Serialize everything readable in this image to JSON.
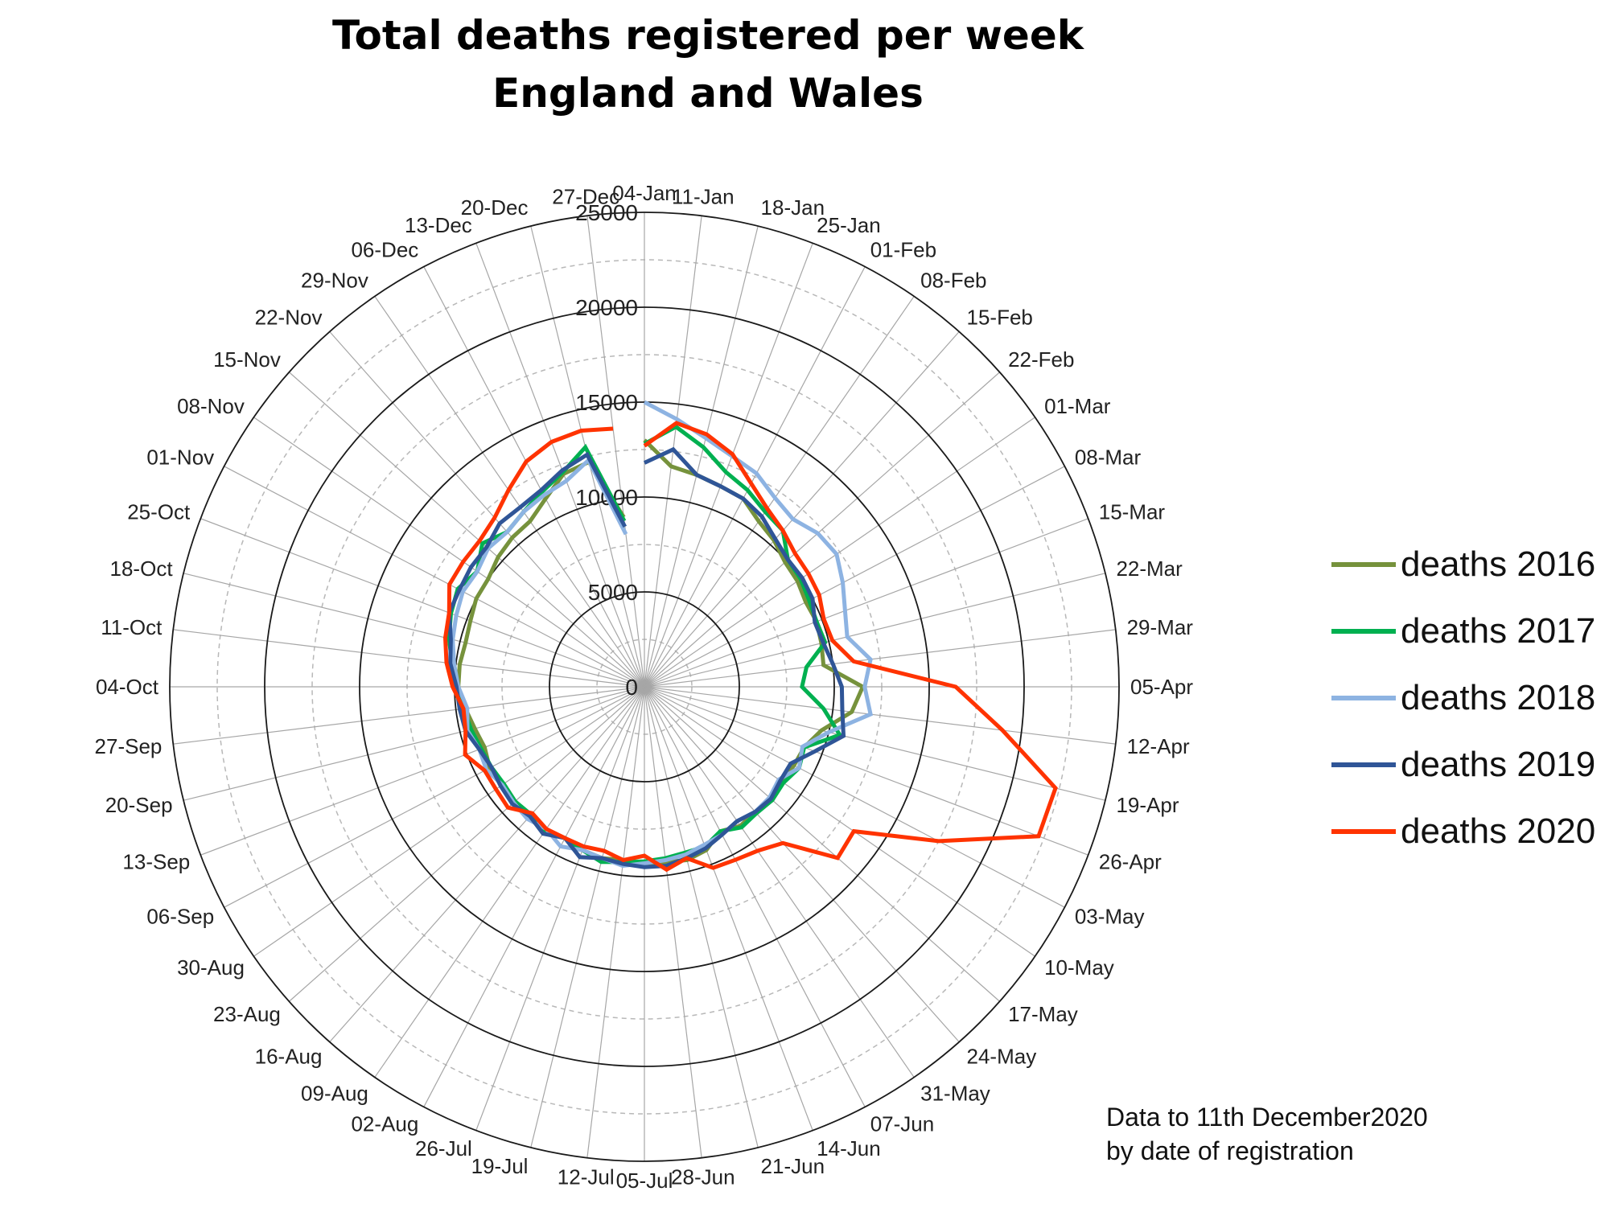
{
  "chart_data": {
    "type": "radar",
    "title": "Total deaths registered per week",
    "subtitle": "England and Wales",
    "radial_ticks": [
      "0",
      "5000",
      "10000",
      "15000",
      "20000",
      "25000"
    ],
    "rmax": 25000,
    "grid": true,
    "legend": "right",
    "note_lines": [
      "Data to 11th December2020",
      "by date of registration"
    ],
    "categories": [
      "04-Jan",
      "11-Jan",
      "18-Jan",
      "25-Jan",
      "01-Feb",
      "08-Feb",
      "15-Feb",
      "22-Feb",
      "01-Mar",
      "08-Mar",
      "15-Mar",
      "22-Mar",
      "29-Mar",
      "05-Apr",
      "12-Apr",
      "19-Apr",
      "26-Apr",
      "03-May",
      "10-May",
      "17-May",
      "24-May",
      "31-May",
      "07-Jun",
      "14-Jun",
      "21-Jun",
      "28-Jun",
      "05-Jul",
      "12-Jul",
      "19-Jul",
      "26-Jul",
      "02-Aug",
      "09-Aug",
      "16-Aug",
      "23-Aug",
      "30-Aug",
      "06-Sep",
      "13-Sep",
      "20-Sep",
      "27-Sep",
      "04-Oct",
      "11-Oct",
      "18-Oct",
      "25-Oct",
      "01-Nov",
      "08-Nov",
      "15-Nov",
      "22-Nov",
      "29-Nov",
      "06-Dec",
      "13-Dec",
      "20-Dec",
      "27-Dec"
    ],
    "series": [
      {
        "name": "deaths 2016",
        "color": "#76923c",
        "values": [
          13000,
          11700,
          11500,
          11300,
          11200,
          10600,
          10300,
          9900,
          9800,
          9600,
          9700,
          9600,
          9500,
          11500,
          11000,
          9600,
          9000,
          8900,
          8800,
          9000,
          8800,
          8900,
          8600,
          9200,
          9400,
          9300,
          9400,
          9200,
          9300,
          9200,
          9000,
          9200,
          9100,
          9100,
          9000,
          9200,
          9000,
          9200,
          9500,
          9800,
          9800,
          9700,
          9800,
          10000,
          10000,
          10300,
          10500,
          10600,
          11200,
          12000,
          12200,
          9000
        ]
      },
      {
        "name": "deaths 2017",
        "color": "#00b050",
        "values": [
          12800,
          13800,
          13000,
          12100,
          11700,
          11200,
          11000,
          10100,
          10000,
          9800,
          9700,
          9800,
          8600,
          8300,
          9500,
          10600,
          9000,
          9200,
          8900,
          9000,
          8900,
          9000,
          8600,
          9000,
          9000,
          9100,
          9200,
          9300,
          9500,
          9200,
          9000,
          9300,
          9000,
          9100,
          9000,
          9100,
          9200,
          9400,
          9600,
          9800,
          10200,
          10600,
          10900,
          11100,
          10700,
          11400,
          10900,
          11200,
          11600,
          12100,
          13000,
          8800
        ]
      },
      {
        "name": "deaths 2018",
        "color": "#8db3e2",
        "values": [
          15000,
          14200,
          13500,
          13000,
          12700,
          12100,
          11800,
          12200,
          12300,
          11800,
          11300,
          11000,
          12000,
          11600,
          12000,
          10000,
          8900,
          9200,
          8600,
          8800,
          8800,
          8600,
          8800,
          8900,
          9100,
          9200,
          9300,
          9500,
          9300,
          9200,
          9500,
          9100,
          9300,
          9200,
          9100,
          9400,
          9300,
          9600,
          9400,
          9800,
          10100,
          10400,
          10600,
          10800,
          10700,
          11000,
          10900,
          11200,
          11400,
          11600,
          12300,
          8100
        ]
      },
      {
        "name": "deaths 2019",
        "color": "#2f5597",
        "values": [
          11800,
          12600,
          11500,
          11300,
          11200,
          10900,
          10400,
          10100,
          10100,
          10000,
          9600,
          9700,
          10000,
          10400,
          10500,
          10800,
          9600,
          8700,
          8700,
          8900,
          8800,
          8600,
          8800,
          9100,
          9300,
          9500,
          9500,
          9400,
          9300,
          9600,
          9000,
          9400,
          9100,
          9300,
          9200,
          9100,
          9300,
          9700,
          9800,
          9900,
          10300,
          10500,
          11000,
          11000,
          11100,
          11100,
          11500,
          11500,
          11700,
          12200,
          12600,
          8500
        ]
      },
      {
        "name": "deaths 2020",
        "color": "#ff3300",
        "values": [
          12700,
          14000,
          13700,
          13100,
          12100,
          11400,
          11000,
          10600,
          10500,
          10400,
          10100,
          10200,
          11100,
          16400,
          19000,
          22300,
          22200,
          17500,
          13400,
          13600,
          11000,
          10500,
          10300,
          10200,
          9300,
          9700,
          8900,
          9200,
          8900,
          9000,
          9000,
          9100,
          8900,
          9600,
          9500,
          9500,
          10100,
          9700,
          9600,
          10100,
          10500,
          10800,
          11000,
          11600,
          11600,
          11600,
          11900,
          12600,
          13400,
          13800,
          13900,
          13700
        ]
      }
    ]
  }
}
